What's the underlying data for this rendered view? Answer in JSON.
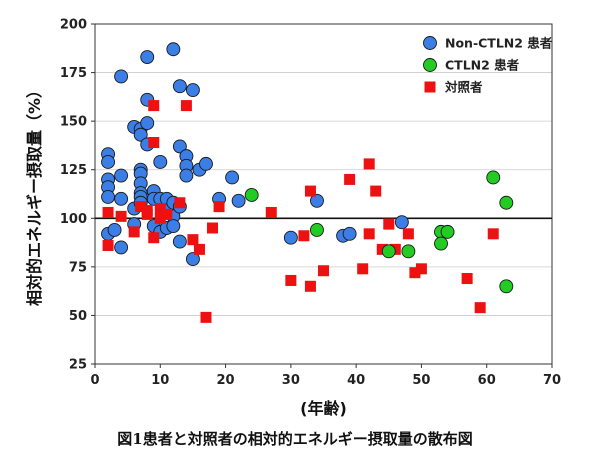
{
  "caption": "図1患者と対照者の相対的エネルギー摂取量の散布図",
  "chart_data": {
    "type": "scatter",
    "title": "",
    "xlabel": "(年齢)",
    "ylabel": "相対的エネルギー摂取量（%）",
    "xlim": [
      0,
      70
    ],
    "ylim": [
      25,
      200
    ],
    "x_ticks": [
      0,
      10,
      20,
      30,
      40,
      50,
      60,
      70
    ],
    "y_ticks": [
      25,
      50,
      75,
      100,
      125,
      150,
      175,
      200
    ],
    "reference_line": 100,
    "legend_position": "top-right",
    "series": [
      {
        "name": "Non-CTLN2 患者",
        "marker": "circle",
        "color": "#3a7ee6",
        "points": [
          [
            2,
            133
          ],
          [
            2,
            129
          ],
          [
            2,
            120
          ],
          [
            2,
            116
          ],
          [
            2,
            111
          ],
          [
            2,
            92
          ],
          [
            3,
            94
          ],
          [
            4,
            173
          ],
          [
            4,
            122
          ],
          [
            4,
            110
          ],
          [
            4,
            85
          ],
          [
            6,
            147
          ],
          [
            6,
            105
          ],
          [
            6,
            97
          ],
          [
            7,
            146
          ],
          [
            7,
            143
          ],
          [
            7,
            125
          ],
          [
            7,
            123
          ],
          [
            7,
            118
          ],
          [
            7,
            113
          ],
          [
            7,
            111
          ],
          [
            7,
            108
          ],
          [
            8,
            183
          ],
          [
            8,
            161
          ],
          [
            8,
            149
          ],
          [
            8,
            138
          ],
          [
            9,
            114
          ],
          [
            9,
            110
          ],
          [
            9,
            96
          ],
          [
            10,
            129
          ],
          [
            10,
            110
          ],
          [
            10,
            93
          ],
          [
            11,
            110
          ],
          [
            11,
            104
          ],
          [
            11,
            95
          ],
          [
            12,
            187
          ],
          [
            12,
            108
          ],
          [
            12,
            101
          ],
          [
            12,
            96
          ],
          [
            13,
            168
          ],
          [
            13,
            137
          ],
          [
            13,
            106
          ],
          [
            13,
            88
          ],
          [
            14,
            132
          ],
          [
            14,
            127
          ],
          [
            14,
            122
          ],
          [
            15,
            166
          ],
          [
            15,
            79
          ],
          [
            16,
            125
          ],
          [
            17,
            128
          ],
          [
            19,
            110
          ],
          [
            21,
            121
          ],
          [
            22,
            109
          ],
          [
            30,
            90
          ],
          [
            34,
            109
          ],
          [
            38,
            91
          ],
          [
            39,
            92
          ],
          [
            47,
            98
          ]
        ]
      },
      {
        "name": "CTLN2 患者",
        "marker": "circle",
        "color": "#22cc22",
        "points": [
          [
            24,
            112
          ],
          [
            34,
            94
          ],
          [
            45,
            83
          ],
          [
            48,
            83
          ],
          [
            53,
            93
          ],
          [
            53,
            87
          ],
          [
            54,
            93
          ],
          [
            61,
            121
          ],
          [
            63,
            108
          ],
          [
            63,
            65
          ]
        ]
      },
      {
        "name": "対照者",
        "marker": "square",
        "color": "#ee1111",
        "points": [
          [
            2,
            103
          ],
          [
            2,
            86
          ],
          [
            4,
            101
          ],
          [
            6,
            93
          ],
          [
            7,
            106
          ],
          [
            8,
            104
          ],
          [
            8,
            102
          ],
          [
            9,
            158
          ],
          [
            9,
            139
          ],
          [
            9,
            90
          ],
          [
            10,
            105
          ],
          [
            10,
            100
          ],
          [
            11,
            102
          ],
          [
            13,
            108
          ],
          [
            14,
            158
          ],
          [
            15,
            89
          ],
          [
            16,
            84
          ],
          [
            17,
            49
          ],
          [
            18,
            95
          ],
          [
            19,
            106
          ],
          [
            27,
            103
          ],
          [
            30,
            68
          ],
          [
            32,
            91
          ],
          [
            33,
            114
          ],
          [
            33,
            65
          ],
          [
            35,
            73
          ],
          [
            39,
            120
          ],
          [
            41,
            74
          ],
          [
            42,
            128
          ],
          [
            42,
            92
          ],
          [
            43,
            114
          ],
          [
            44,
            84
          ],
          [
            45,
            97
          ],
          [
            46,
            84
          ],
          [
            48,
            92
          ],
          [
            49,
            72
          ],
          [
            50,
            74
          ],
          [
            57,
            69
          ],
          [
            59,
            54
          ],
          [
            61,
            92
          ]
        ]
      }
    ]
  }
}
